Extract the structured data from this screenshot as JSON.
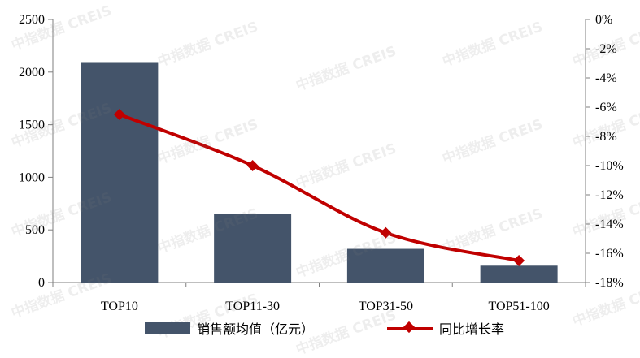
{
  "chart_data": {
    "type": "bar+line",
    "categories": [
      "TOP10",
      "TOP11-30",
      "TOP31-50",
      "TOP51-100"
    ],
    "series": [
      {
        "name": "销售额均值（亿元）",
        "type": "bar",
        "axis": "left",
        "values": [
          2095,
          650,
          320,
          160
        ]
      },
      {
        "name": "同比增长率",
        "type": "line",
        "axis": "right",
        "values": [
          -6.5,
          -10.0,
          -14.6,
          -16.5
        ]
      }
    ],
    "left_axis": {
      "ylim": [
        0,
        2500
      ],
      "ticks": [
        0,
        500,
        1000,
        1500,
        2000,
        2500
      ],
      "tick_labels": [
        "0",
        "500",
        "1000",
        "1500",
        "2000",
        "2500"
      ]
    },
    "right_axis": {
      "ylim": [
        -18,
        0
      ],
      "ticks": [
        0,
        -2,
        -4,
        -6,
        -8,
        -10,
        -12,
        -14,
        -16,
        -18
      ],
      "tick_labels": [
        "0%",
        "-2%",
        "-4%",
        "-6%",
        "-8%",
        "-10%",
        "-12%",
        "-14%",
        "-16%",
        "-18%"
      ]
    },
    "legend_position": "bottom",
    "grid": false
  },
  "colors": {
    "bar": "#44546A",
    "line": "#C00000",
    "axis": "#7F7F7F",
    "watermark": "#787878"
  },
  "watermark_text": "中指数据 CREIS"
}
